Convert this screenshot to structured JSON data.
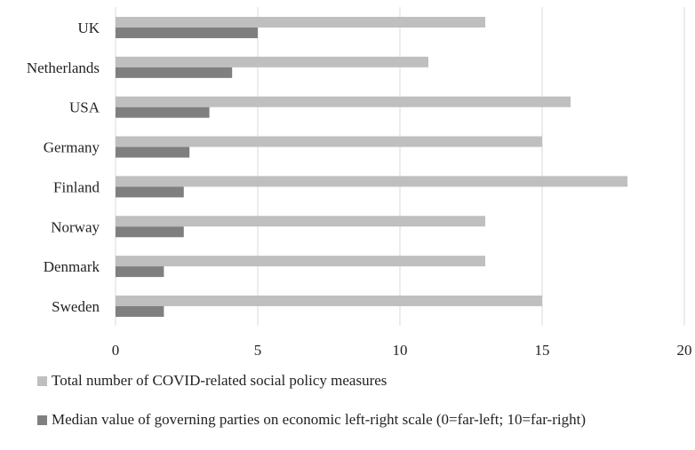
{
  "chart_data": {
    "type": "bar",
    "orientation": "horizontal",
    "categories": [
      "UK",
      "Netherlands",
      "USA",
      "Germany",
      "Finland",
      "Norway",
      "Denmark",
      "Sweden"
    ],
    "series": [
      {
        "name": "Total number of COVID-related social policy measures",
        "color": "#bfbfbf",
        "values": [
          13,
          11,
          16,
          15,
          18,
          13,
          13,
          15
        ]
      },
      {
        "name": "Median value of governing parties on economic left-right scale (0=far-left; 10=far-right)",
        "color": "#7f7f7f",
        "values": [
          5,
          4.1,
          3.3,
          2.6,
          2.4,
          2.4,
          1.7,
          1.7
        ]
      }
    ],
    "xlim": [
      0,
      20
    ],
    "xticks": [
      0,
      5,
      10,
      15,
      20
    ],
    "grid": "vertical",
    "legend": "bottom"
  }
}
